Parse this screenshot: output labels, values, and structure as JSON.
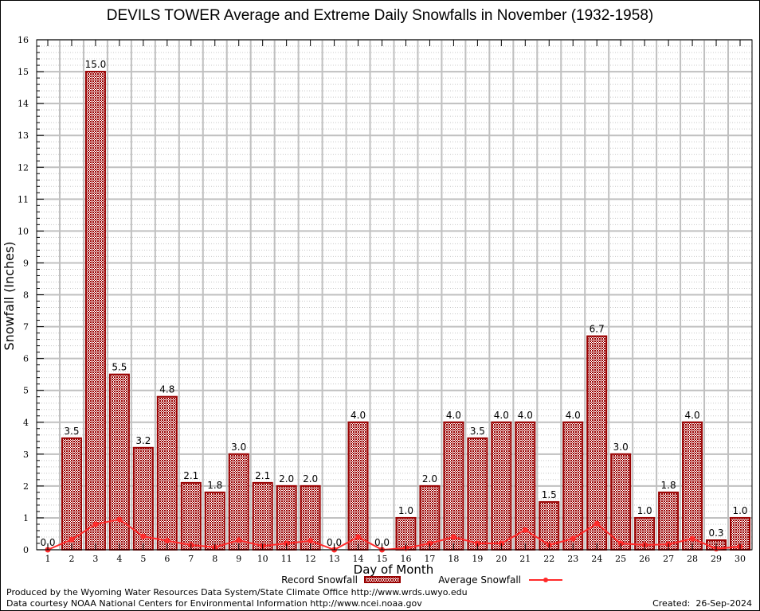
{
  "chart_data": {
    "type": "bar",
    "title": "DEVILS TOWER Average and Extreme Daily Snowfalls in November (1932-1958)",
    "xlabel": "Day of Month",
    "ylabel": "Snowfall (Inches)",
    "ylim": [
      0,
      16
    ],
    "yticks": [
      "0",
      "1",
      "2",
      "3",
      "4",
      "5",
      "6",
      "7",
      "8",
      "9",
      "10",
      "11",
      "12",
      "13",
      "14",
      "15",
      "16"
    ],
    "categories": [
      "1",
      "2",
      "3",
      "4",
      "5",
      "6",
      "7",
      "8",
      "9",
      "10",
      "11",
      "12",
      "13",
      "14",
      "15",
      "16",
      "17",
      "18",
      "19",
      "20",
      "21",
      "22",
      "23",
      "24",
      "25",
      "26",
      "27",
      "28",
      "29",
      "30"
    ],
    "grid": true,
    "legend_position": "bottom-center",
    "series": [
      {
        "name": "Record Snowfall",
        "type": "bar",
        "color": "#990000",
        "values": [
          0.0,
          3.5,
          15.0,
          5.5,
          3.2,
          4.8,
          2.1,
          1.8,
          3.0,
          2.1,
          2.0,
          2.0,
          0.0,
          4.0,
          0.0,
          1.0,
          2.0,
          4.0,
          3.5,
          4.0,
          4.0,
          1.5,
          4.0,
          6.7,
          3.0,
          1.0,
          1.8,
          4.0,
          0.3,
          1.0
        ],
        "labels": [
          "0.0",
          "3.5",
          "15.0",
          "5.5",
          "3.2",
          "4.8",
          "2.1",
          "1.8",
          "3.0",
          "2.1",
          "2.0",
          "2.0",
          "0.0",
          "4.0",
          "0.0",
          "1.0",
          "2.0",
          "4.0",
          "3.5",
          "4.0",
          "4.0",
          "1.5",
          "4.0",
          "6.7",
          "3.0",
          "1.0",
          "1.8",
          "4.0",
          "0.3",
          "1.0"
        ]
      },
      {
        "name": "Average Snowfall",
        "type": "line",
        "color": "#ff2a2a",
        "values": [
          0.0,
          0.32,
          0.8,
          0.95,
          0.42,
          0.28,
          0.15,
          0.08,
          0.3,
          0.12,
          0.2,
          0.28,
          0.0,
          0.4,
          0.0,
          0.05,
          0.2,
          0.4,
          0.2,
          0.2,
          0.62,
          0.15,
          0.35,
          0.82,
          0.2,
          0.15,
          0.17,
          0.35,
          0.03,
          0.1
        ]
      }
    ]
  },
  "footer": {
    "produced_by": "Produced by the Wyoming Water Resources Data System/State Climate Office http://www.wrds.uwyo.edu",
    "data_courtesy": "Data courtesy NOAA National Centers for Environmental Information http://www.ncei.noaa.gov",
    "created": "Created:  26-Sep-2024"
  }
}
